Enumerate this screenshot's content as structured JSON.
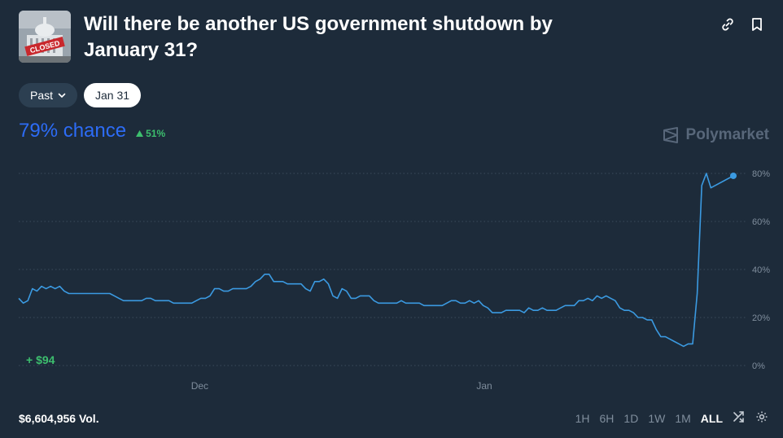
{
  "market": {
    "title": "Will there be another US government shutdown by January 31?",
    "thumbnail_label": "CLOSED"
  },
  "filters": {
    "past_label": "Past",
    "selected_label": "Jan 31"
  },
  "chance": {
    "value_text": "79% chance",
    "change_text": "51%",
    "change_direction": "up"
  },
  "brand": {
    "name": "Polymarket"
  },
  "pnl": {
    "text": "+ $94"
  },
  "footer": {
    "volume_text": "$6,604,956 Vol."
  },
  "time_ranges": [
    "1H",
    "6H",
    "1D",
    "1W",
    "1M",
    "ALL"
  ],
  "active_range": "ALL",
  "colors": {
    "accent": "#2d6cf6",
    "line": "#3b9ae1",
    "positive": "#3dbf6e",
    "background": "#1d2b3a"
  },
  "chart_data": {
    "type": "line",
    "y_ticks": [
      "80%",
      "60%",
      "40%",
      "20%",
      "0%"
    ],
    "y_range": [
      0,
      80
    ],
    "x_ticks": [
      {
        "label": "Dec",
        "x": 0.255
      },
      {
        "label": "Jan",
        "x": 0.656
      }
    ],
    "series": [
      {
        "values": [
          28,
          26,
          27,
          32,
          31,
          33,
          32,
          33,
          32,
          33,
          31,
          30,
          30,
          30,
          30,
          30,
          30,
          30,
          30,
          30,
          30,
          29,
          28,
          27,
          27,
          27,
          27,
          27,
          28,
          28,
          27,
          27,
          27,
          27,
          26,
          26,
          26,
          26,
          26,
          27,
          28,
          28,
          29,
          32,
          32,
          31,
          31,
          32,
          32,
          32,
          32,
          33,
          35,
          36,
          38,
          38,
          35,
          35,
          35,
          34,
          34,
          34,
          34,
          32,
          31,
          35,
          35,
          36,
          34,
          29,
          28,
          32,
          31,
          28,
          28,
          29,
          29,
          29,
          27,
          26,
          26,
          26,
          26,
          26,
          27,
          26,
          26,
          26,
          26,
          25,
          25,
          25,
          25,
          25,
          26,
          27,
          27,
          26,
          26,
          27,
          26,
          27,
          25,
          24,
          22,
          22,
          22,
          23,
          23,
          23,
          23,
          22,
          24,
          23,
          23,
          24,
          23,
          23,
          23,
          24,
          25,
          25,
          25,
          27,
          27,
          28,
          27,
          29,
          28,
          29,
          28,
          27,
          24,
          23,
          23,
          22,
          20,
          20,
          19,
          19,
          15,
          12,
          12,
          11,
          10,
          9,
          8,
          9,
          9,
          30,
          75,
          80,
          74,
          79
        ]
      }
    ]
  }
}
